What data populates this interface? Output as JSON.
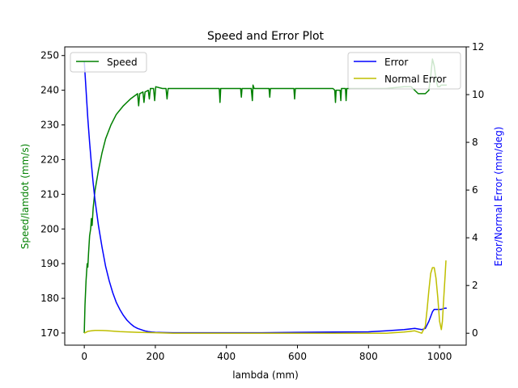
{
  "chart_data": {
    "type": "line",
    "title": "Speed and Error Plot",
    "xlabel": "lambda (mm)",
    "ylabel_left": "Speed/lamdot (mm/s)",
    "ylabel_right": "Error/Normal Error (mm/deg)",
    "xlim": [
      -55,
      1075
    ],
    "ylim_left": [
      166.5,
      252.5
    ],
    "ylim_right": [
      -0.5,
      12.0
    ],
    "x_ticks": [
      0,
      200,
      400,
      600,
      800,
      1000
    ],
    "y_ticks_left": [
      170,
      180,
      190,
      200,
      210,
      220,
      230,
      240,
      250
    ],
    "y_ticks_right": [
      0,
      2,
      4,
      6,
      8,
      10,
      12
    ],
    "grid": false,
    "legends": [
      {
        "placement": "upper-left",
        "entries": [
          "Speed"
        ]
      },
      {
        "placement": "upper-right",
        "entries": [
          "Error",
          "Normal Error"
        ]
      }
    ],
    "colors": {
      "speed": "#008000",
      "error": "#0000ff",
      "normal_error": "#bfbf00",
      "left_axis_label": "#008000",
      "right_axis_label": "#0000ff"
    },
    "series": [
      {
        "name": "Speed",
        "axis": "left",
        "color": "#008000",
        "points": [
          [
            0,
            170
          ],
          [
            2,
            178
          ],
          [
            5,
            185
          ],
          [
            8,
            190
          ],
          [
            10,
            189
          ],
          [
            12,
            193
          ],
          [
            15,
            198
          ],
          [
            18,
            200
          ],
          [
            20,
            203
          ],
          [
            22,
            201
          ],
          [
            25,
            206
          ],
          [
            30,
            211
          ],
          [
            40,
            217
          ],
          [
            50,
            222
          ],
          [
            60,
            226
          ],
          [
            75,
            230
          ],
          [
            90,
            233
          ],
          [
            110,
            235.5
          ],
          [
            130,
            237.5
          ],
          [
            150,
            239
          ],
          [
            153,
            235.5
          ],
          [
            156,
            239
          ],
          [
            165,
            239.5
          ],
          [
            168,
            236.5
          ],
          [
            171,
            239.5
          ],
          [
            180,
            240
          ],
          [
            183,
            237.5
          ],
          [
            186,
            240.5
          ],
          [
            195,
            240.5
          ],
          [
            198,
            237
          ],
          [
            201,
            241
          ],
          [
            220,
            240.5
          ],
          [
            230,
            240.5
          ],
          [
            233,
            237.5
          ],
          [
            236,
            240.5
          ],
          [
            260,
            240.5
          ],
          [
            300,
            240.5
          ],
          [
            350,
            240.5
          ],
          [
            380,
            240.5
          ],
          [
            382,
            236.5
          ],
          [
            384,
            240.5
          ],
          [
            420,
            240.5
          ],
          [
            440,
            240.5
          ],
          [
            442,
            238
          ],
          [
            444,
            240.5
          ],
          [
            470,
            240.5
          ],
          [
            473,
            237
          ],
          [
            475,
            241.5
          ],
          [
            478,
            240.5
          ],
          [
            500,
            240.5
          ],
          [
            520,
            240.5
          ],
          [
            522,
            238
          ],
          [
            524,
            240.5
          ],
          [
            550,
            240.5
          ],
          [
            580,
            240.5
          ],
          [
            590,
            240.5
          ],
          [
            592,
            237.5
          ],
          [
            594,
            240.5
          ],
          [
            650,
            240.5
          ],
          [
            700,
            240.5
          ],
          [
            705,
            240
          ],
          [
            707,
            236.5
          ],
          [
            709,
            240
          ],
          [
            720,
            240
          ],
          [
            722,
            237
          ],
          [
            724,
            240.5
          ],
          [
            735,
            240.5
          ],
          [
            737,
            237
          ],
          [
            739,
            240.5
          ],
          [
            800,
            240.5
          ],
          [
            850,
            240.5
          ],
          [
            900,
            241
          ],
          [
            920,
            241
          ],
          [
            930,
            240
          ],
          [
            940,
            239
          ],
          [
            960,
            239
          ],
          [
            970,
            240
          ],
          [
            975,
            244
          ],
          [
            980,
            249
          ],
          [
            985,
            247
          ],
          [
            990,
            243
          ],
          [
            995,
            241
          ],
          [
            1000,
            241
          ],
          [
            1005,
            241.5
          ],
          [
            1010,
            241.5
          ],
          [
            1020,
            241.5
          ]
        ]
      },
      {
        "name": "Error",
        "axis": "right",
        "color": "#0000ff",
        "points": [
          [
            0,
            11.4
          ],
          [
            5,
            10.2
          ],
          [
            10,
            9.0
          ],
          [
            15,
            8.0
          ],
          [
            20,
            7.1
          ],
          [
            25,
            6.3
          ],
          [
            30,
            5.6
          ],
          [
            40,
            4.5
          ],
          [
            50,
            3.6
          ],
          [
            60,
            2.8
          ],
          [
            70,
            2.2
          ],
          [
            80,
            1.7
          ],
          [
            90,
            1.3
          ],
          [
            100,
            1.0
          ],
          [
            110,
            0.75
          ],
          [
            120,
            0.55
          ],
          [
            130,
            0.4
          ],
          [
            140,
            0.28
          ],
          [
            150,
            0.2
          ],
          [
            160,
            0.15
          ],
          [
            170,
            0.1
          ],
          [
            180,
            0.07
          ],
          [
            190,
            0.05
          ],
          [
            200,
            0.04
          ],
          [
            220,
            0.03
          ],
          [
            250,
            0.02
          ],
          [
            300,
            0.02
          ],
          [
            400,
            0.02
          ],
          [
            500,
            0.02
          ],
          [
            600,
            0.04
          ],
          [
            700,
            0.05
          ],
          [
            800,
            0.06
          ],
          [
            850,
            0.1
          ],
          [
            900,
            0.15
          ],
          [
            930,
            0.2
          ],
          [
            950,
            0.15
          ],
          [
            960,
            0.2
          ],
          [
            970,
            0.5
          ],
          [
            980,
            0.9
          ],
          [
            985,
            1.0
          ],
          [
            995,
            1.0
          ],
          [
            1005,
            1.0
          ],
          [
            1015,
            1.05
          ],
          [
            1020,
            1.05
          ]
        ]
      },
      {
        "name": "Normal Error",
        "axis": "right",
        "color": "#bfbf00",
        "points": [
          [
            0,
            0.0
          ],
          [
            10,
            0.08
          ],
          [
            20,
            0.1
          ],
          [
            30,
            0.12
          ],
          [
            40,
            0.12
          ],
          [
            60,
            0.11
          ],
          [
            100,
            0.07
          ],
          [
            150,
            0.04
          ],
          [
            200,
            0.02
          ],
          [
            250,
            0.0
          ],
          [
            300,
            0.0
          ],
          [
            400,
            0.0
          ],
          [
            500,
            0.0
          ],
          [
            600,
            0.0
          ],
          [
            700,
            0.0
          ],
          [
            800,
            0.0
          ],
          [
            850,
            0.0
          ],
          [
            900,
            0.05
          ],
          [
            930,
            0.1
          ],
          [
            950,
            0.0
          ],
          [
            960,
            0.3
          ],
          [
            965,
            1.0
          ],
          [
            970,
            1.8
          ],
          [
            975,
            2.5
          ],
          [
            980,
            2.75
          ],
          [
            985,
            2.75
          ],
          [
            990,
            2.3
          ],
          [
            995,
            1.5
          ],
          [
            1000,
            0.5
          ],
          [
            1005,
            0.15
          ],
          [
            1008,
            0.5
          ],
          [
            1012,
            1.5
          ],
          [
            1016,
            2.5
          ],
          [
            1018,
            3.05
          ]
        ]
      }
    ]
  }
}
